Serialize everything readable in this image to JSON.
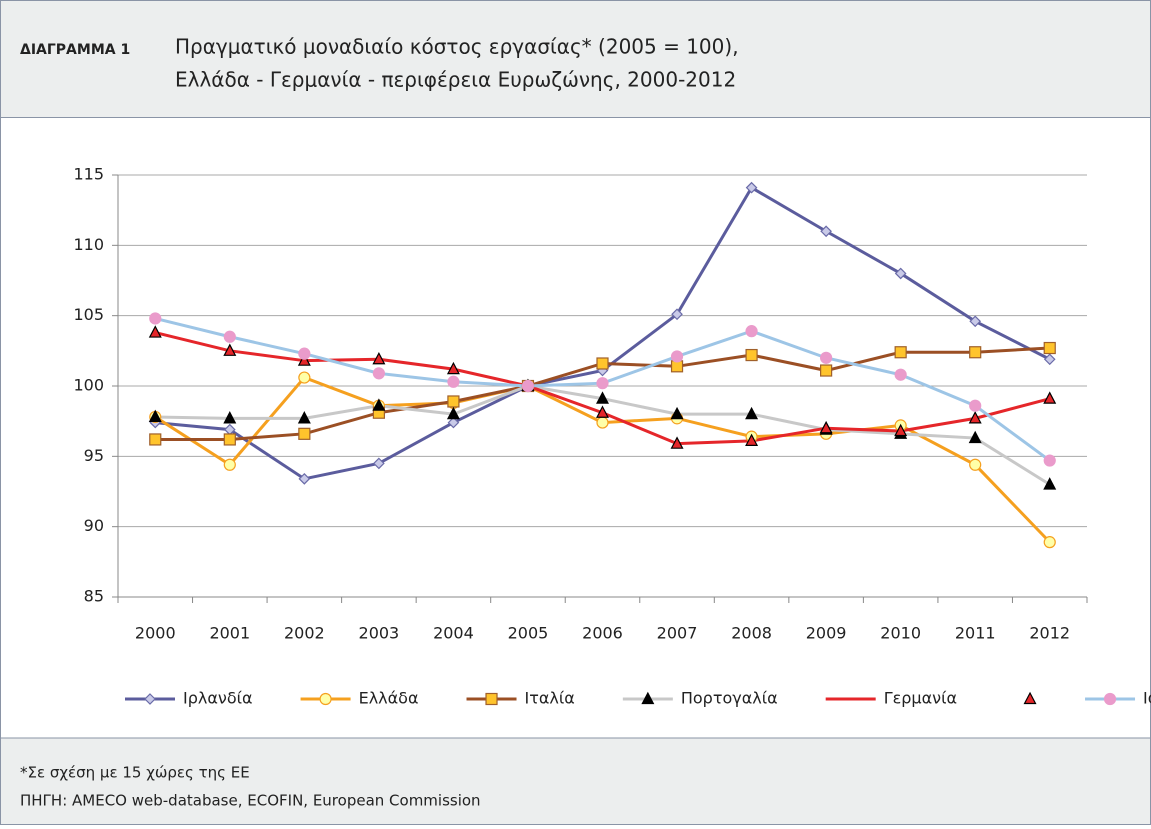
{
  "label": "ΔΙΑΓΡΑΜΜΑ 1",
  "title_lines": [
    "Πραγματικό μοναδιαίο κόστος εργασίας* (2005 = 100),",
    "Ελλάδα - Γερμανία - περιφέρεια Ευρωζώνης, 2000-2012"
  ],
  "footnotes": [
    "*Σε σχέση με 15 χώρες της ΕΕ",
    "ΠΗΓΗ: AMECO web-database, ECOFIN, European Commission"
  ],
  "chart_data": {
    "type": "line",
    "categories": [
      "2000",
      "2001",
      "2002",
      "2003",
      "2004",
      "2005",
      "2006",
      "2007",
      "2008",
      "2009",
      "2010",
      "2011",
      "2012"
    ],
    "ylim": [
      85,
      115
    ],
    "yticks": [
      85,
      90,
      95,
      100,
      105,
      110,
      115
    ],
    "grid": true,
    "legend": "bottom",
    "series": [
      {
        "name": "Ιρλανδία",
        "color": "#5b5c9d",
        "marker": "diamond",
        "marker_fill": "#c9cae8",
        "marker_stroke": "#6a6ba8",
        "values": [
          97.4,
          96.9,
          93.4,
          94.5,
          97.4,
          100,
          101.1,
          105.1,
          114.1,
          111.0,
          108.0,
          104.6,
          101.9
        ]
      },
      {
        "name": "Ελλάδα",
        "color": "#f5a01f",
        "marker": "circle",
        "marker_fill": "#ffffa8",
        "marker_stroke": "#f5a01f",
        "values": [
          97.8,
          94.4,
          100.6,
          98.6,
          98.8,
          100,
          97.4,
          97.7,
          96.4,
          96.6,
          97.2,
          94.4,
          88.9
        ]
      },
      {
        "name": "Ιταλία",
        "color": "#9b4f24",
        "marker": "square",
        "marker_fill": "#ffc42c",
        "marker_stroke": "#a0602a",
        "values": [
          96.2,
          96.2,
          96.6,
          98.1,
          98.9,
          100,
          101.6,
          101.4,
          102.2,
          101.1,
          102.4,
          102.4,
          102.7
        ]
      },
      {
        "name": "Πορτογαλία",
        "color": "#c8c8c8",
        "marker": "triangle",
        "marker_fill": "#000000",
        "marker_stroke": "#000000",
        "values": [
          97.8,
          97.7,
          97.7,
          98.6,
          98.0,
          100,
          99.1,
          98.0,
          98.0,
          96.9,
          96.6,
          96.3,
          93.0
        ]
      },
      {
        "name": "Γερμανία",
        "color": "#e5262a",
        "marker": "triangle",
        "marker_fill": "#e5262a",
        "marker_stroke": "#000000",
        "legend_marker_separate": true,
        "values": [
          103.8,
          102.5,
          101.8,
          101.9,
          101.2,
          100,
          98.1,
          95.9,
          96.1,
          97.0,
          96.8,
          97.7,
          99.1
        ]
      },
      {
        "name": "Ισπανία",
        "color": "#9dc5e6",
        "marker": "circle",
        "marker_fill": "#ea9bcb",
        "marker_stroke": "#ea9bcb",
        "values": [
          104.8,
          103.5,
          102.3,
          100.9,
          100.3,
          100,
          100.2,
          102.1,
          103.9,
          102.0,
          100.8,
          98.6,
          94.7
        ]
      }
    ]
  }
}
